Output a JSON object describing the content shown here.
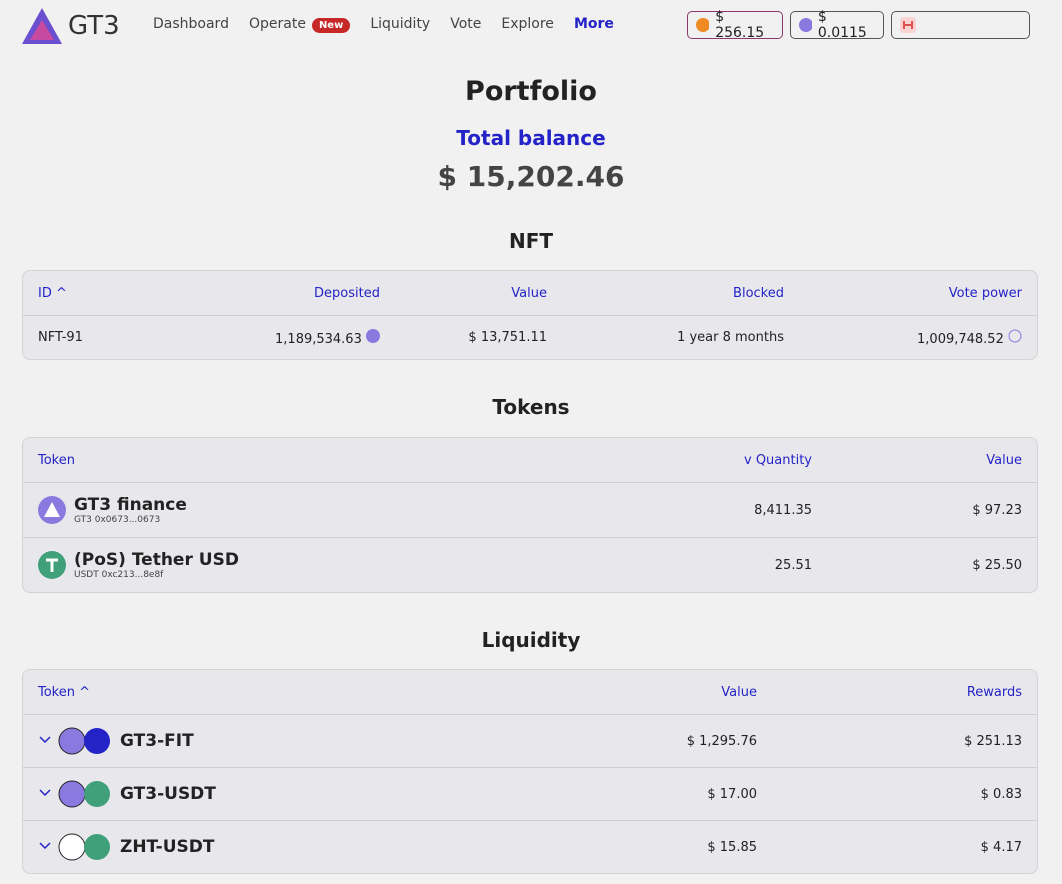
{
  "nav": {
    "brand": "GT3",
    "links": [
      "Dashboard",
      "Operate",
      "Liquidity",
      "Vote",
      "Explore",
      "More"
    ],
    "badge": "New",
    "prices": [
      "$ 256.15",
      "$ 0.0115"
    ]
  },
  "header": {
    "title": "Portfolio",
    "balance_label": "Total balance",
    "balance": "$ 15,202.46"
  },
  "nft": {
    "title": "NFT",
    "columns": [
      "ID",
      "Deposited",
      "Value",
      "Blocked",
      "Vote power"
    ],
    "rows": [
      [
        "NFT-91",
        "1,189,534.63",
        "$ 13,751.11",
        "1 year 8 months",
        "1,009,748.52"
      ]
    ]
  },
  "tokens": {
    "title": "Tokens",
    "columns": [
      "Token",
      "Quantity",
      "Value"
    ],
    "rows": [
      {
        "name": "GT3 finance",
        "address": "GT3 0x0673...0673",
        "quantity": "8,411.35",
        "value": "$ 97.23"
      },
      {
        "name": "(PoS) Tether USD",
        "address": "USDT 0xc213...8e8f",
        "quantity": "25.51",
        "value": "$ 25.50"
      }
    ]
  },
  "liquidity": {
    "title": "Liquidity",
    "columns": [
      "Token",
      "Value",
      "Rewards"
    ],
    "rows": [
      {
        "pair": "GT3-FIT",
        "value": "$ 1,295.76",
        "rewards": "$ 251.13"
      },
      {
        "pair": "GT3-USDT",
        "value": "$ 17.00",
        "rewards": "$ 0.83"
      },
      {
        "pair": "ZHT-USDT",
        "value": "$ 15.85",
        "rewards": "$ 4.17"
      }
    ]
  }
}
